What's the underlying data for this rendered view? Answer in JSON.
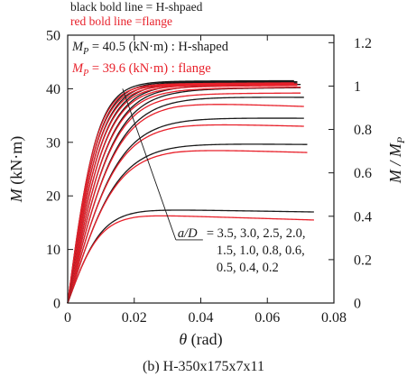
{
  "chart_data": {
    "type": "line",
    "header_notes": [
      {
        "text": "black bold line = H-shpaed",
        "color": "#1a1a1a"
      },
      {
        "text": "red bold line    =flange",
        "color": "#e8202a"
      }
    ],
    "mp_notes": [
      {
        "symbol": "M",
        "sub": "P",
        "rest": " = 40.5 (kN·m) : H-shaped",
        "color": "#1a1a1a"
      },
      {
        "symbol": "M",
        "sub": "P",
        "rest": " = 39.6 (kN·m) : flange",
        "color": "#e8202a"
      }
    ],
    "xaxis": {
      "label_symbol": "θ",
      "label_unit": " (rad)",
      "ticks": [
        0,
        0.02,
        0.04,
        0.06,
        0.08
      ],
      "tick_labels": [
        "0",
        "0.02",
        "0.04",
        "0.06",
        "0.08"
      ],
      "range": [
        0,
        0.08
      ]
    },
    "yaxis_left": {
      "label_symbol": "M",
      "label_unit": " (kN·m)",
      "ticks": [
        0,
        10,
        20,
        30,
        40,
        50
      ],
      "tick_labels": [
        "0",
        "10",
        "20",
        "30",
        "40",
        "50"
      ],
      "range": [
        0,
        50
      ]
    },
    "yaxis_right": {
      "label_symbol": "M / M",
      "label_sub": "P",
      "ticks": [
        0,
        0.2,
        0.4,
        0.6,
        0.8,
        1,
        1.2
      ],
      "tick_labels": [
        "0",
        "0.2",
        "0.4",
        "0.6",
        "0.8",
        "1",
        "1.2"
      ],
      "range": [
        0,
        1.2346
      ]
    },
    "annotation": {
      "symbol": "a/D",
      "lines": [
        " = 3.5, 3.0, 2.5, 2.0,",
        "1.5, 1.0, 0.8, 0.6,",
        "0.5, 0.4, 0.2"
      ],
      "leader_from": [
        0.0325,
        11.8
      ],
      "leader_to": [
        0.0165,
        40.0
      ]
    },
    "series": [
      {
        "a_over_D": 3.5,
        "black": {
          "slope": 1700,
          "plateau": 17.5,
          "end_x": 0.074,
          "end_y": 17.0
        },
        "red": {
          "slope": 1700,
          "plateau": 16.5,
          "end_x": 0.074,
          "end_y": 15.5
        }
      },
      {
        "a_over_D": 3.0,
        "black": {
          "slope": 1980,
          "plateau": 29.8,
          "end_x": 0.072,
          "end_y": 29.6
        },
        "red": {
          "slope": 1980,
          "plateau": 28.8,
          "end_x": 0.072,
          "end_y": 28.1
        }
      },
      {
        "a_over_D": 2.5,
        "black": {
          "slope": 2260,
          "plateau": 34.6,
          "end_x": 0.071,
          "end_y": 34.5
        },
        "red": {
          "slope": 2260,
          "plateau": 33.6,
          "end_x": 0.071,
          "end_y": 33.0
        }
      },
      {
        "a_over_D": 2.0,
        "black": {
          "slope": 2540,
          "plateau": 38.5,
          "end_x": 0.071,
          "end_y": 38.4
        },
        "red": {
          "slope": 2540,
          "plateau": 37.5,
          "end_x": 0.071,
          "end_y": 36.7
        }
      },
      {
        "a_over_D": 1.5,
        "black": {
          "slope": 2820,
          "plateau": 40.0,
          "end_x": 0.07,
          "end_y": 40.2
        },
        "red": {
          "slope": 2820,
          "plateau": 39.1,
          "end_x": 0.07,
          "end_y": 39.2
        }
      },
      {
        "a_over_D": 1.0,
        "black": {
          "slope": 3100,
          "plateau": 40.6,
          "end_x": 0.07,
          "end_y": 40.8
        },
        "red": {
          "slope": 3100,
          "plateau": 40.0,
          "end_x": 0.07,
          "end_y": 40.3
        }
      },
      {
        "a_over_D": 0.8,
        "black": {
          "slope": 3400,
          "plateau": 40.9,
          "end_x": 0.069,
          "end_y": 41.0
        },
        "red": {
          "slope": 3400,
          "plateau": 40.4,
          "end_x": 0.069,
          "end_y": 40.6
        }
      },
      {
        "a_over_D": 0.6,
        "black": {
          "slope": 3700,
          "plateau": 41.1,
          "end_x": 0.069,
          "end_y": 41.2
        },
        "red": {
          "slope": 3700,
          "plateau": 40.6,
          "end_x": 0.069,
          "end_y": 40.8
        }
      },
      {
        "a_over_D": 0.5,
        "black": {
          "slope": 4000,
          "plateau": 41.2,
          "end_x": 0.069,
          "end_y": 41.3
        },
        "red": {
          "slope": 4000,
          "plateau": 40.7,
          "end_x": 0.069,
          "end_y": 40.9
        }
      },
      {
        "a_over_D": 0.4,
        "black": {
          "slope": 4300,
          "plateau": 41.3,
          "end_x": 0.068,
          "end_y": 41.4
        },
        "red": {
          "slope": 4300,
          "plateau": 40.8,
          "end_x": 0.068,
          "end_y": 41.0
        }
      },
      {
        "a_over_D": 0.2,
        "black": {
          "slope": 4600,
          "plateau": 41.4,
          "end_x": 0.068,
          "end_y": 41.5
        },
        "red": {
          "slope": 4600,
          "plateau": 40.9,
          "end_x": 0.068,
          "end_y": 41.1
        }
      }
    ],
    "colors": {
      "black": "#1a1a1a",
      "red": "#e8202a",
      "axis": "#1a1a1a"
    }
  },
  "caption": "(b) H-350x175x7x11"
}
